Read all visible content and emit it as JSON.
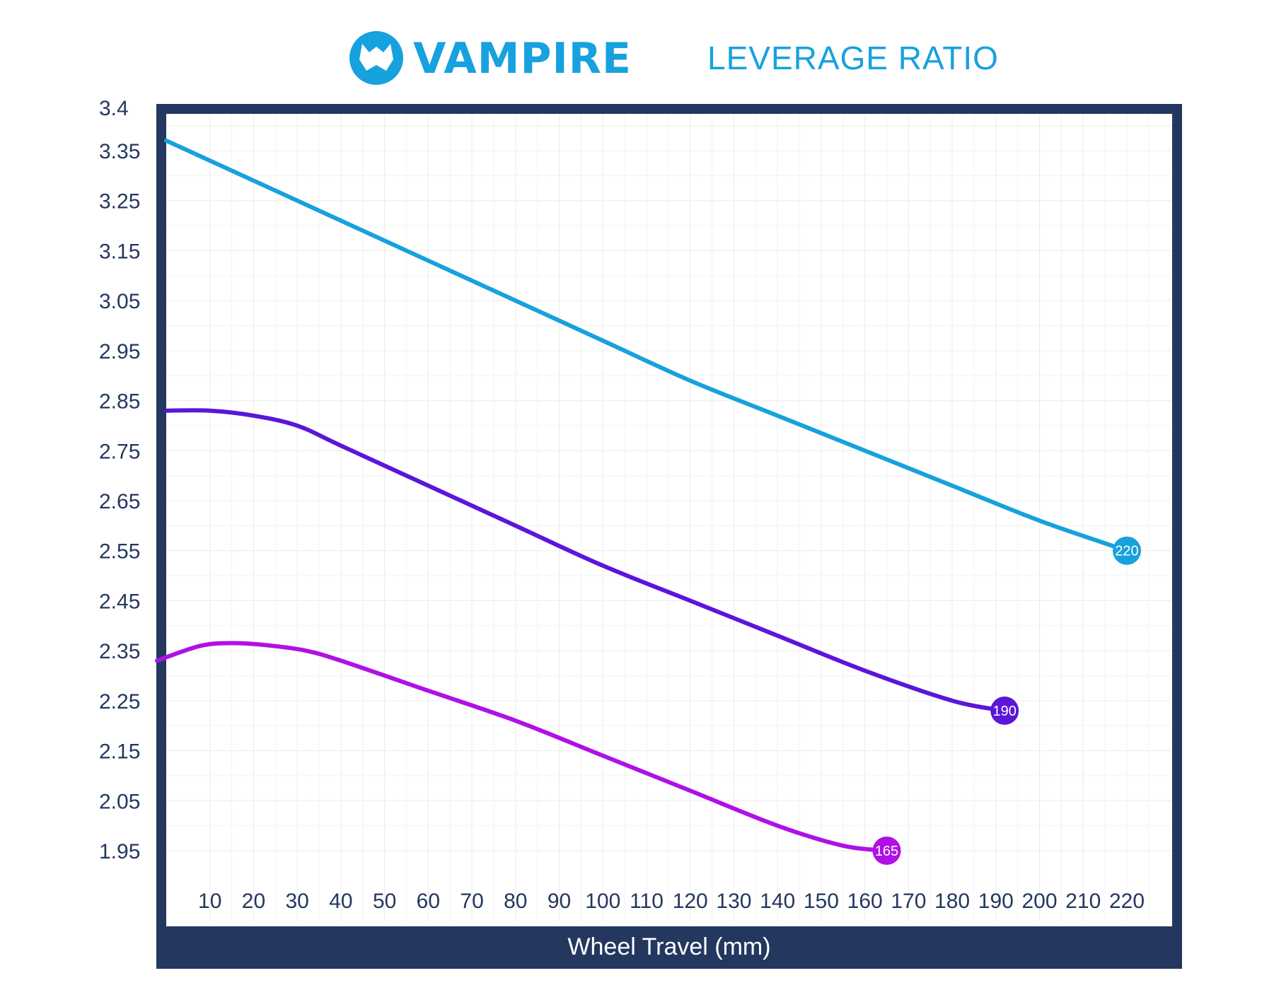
{
  "header": {
    "brand": "VAMPIRE",
    "title": "LEVERAGE RATIO"
  },
  "colors": {
    "frame": "#23375f",
    "brand": "#17a1de",
    "grid": "#e8e8e8"
  },
  "chart_data": {
    "type": "line",
    "xlabel": "Wheel Travel (mm)",
    "ylabel": "",
    "xlim": [
      0,
      225
    ],
    "ylim": [
      1.9,
      3.4
    ],
    "x_ticks": [
      10,
      20,
      30,
      40,
      50,
      60,
      70,
      80,
      90,
      100,
      110,
      120,
      130,
      140,
      150,
      160,
      170,
      180,
      190,
      200,
      210,
      220
    ],
    "y_ticks": [
      1.95,
      2.05,
      2.15,
      2.25,
      2.35,
      2.45,
      2.55,
      2.65,
      2.75,
      2.85,
      2.95,
      3.05,
      3.15,
      3.25,
      3.35,
      3.4
    ],
    "y_tick_labels": [
      "1.95",
      "2.05",
      "2.15",
      "2.25",
      "2.35",
      "2.45",
      "2.55",
      "2.65",
      "2.75",
      "2.85",
      "2.95",
      "3.05",
      "3.15",
      "3.25",
      "3.35",
      "3.4"
    ],
    "grid": true,
    "series": [
      {
        "color": "#17a1de",
        "end_label": "220",
        "x": [
          0,
          20,
          40,
          60,
          80,
          100,
          120,
          140,
          160,
          180,
          200,
          220
        ],
        "y": [
          3.37,
          3.29,
          3.21,
          3.13,
          3.05,
          2.97,
          2.89,
          2.82,
          2.75,
          2.68,
          2.61,
          2.55
        ]
      },
      {
        "color": "#5b16d9",
        "end_label": "190",
        "x": [
          0,
          10,
          20,
          30,
          40,
          60,
          80,
          100,
          120,
          140,
          160,
          180,
          192
        ],
        "y": [
          2.83,
          2.83,
          2.82,
          2.8,
          2.76,
          2.68,
          2.6,
          2.52,
          2.45,
          2.38,
          2.31,
          2.25,
          2.23
        ]
      },
      {
        "color": "#b010e6",
        "end_label": "165",
        "x": [
          0,
          8,
          16,
          24,
          32,
          40,
          60,
          80,
          100,
          120,
          140,
          155,
          165
        ],
        "y": [
          2.33,
          2.36,
          2.365,
          2.36,
          2.35,
          2.33,
          2.27,
          2.21,
          2.14,
          2.07,
          2.0,
          1.96,
          1.95
        ]
      }
    ]
  }
}
